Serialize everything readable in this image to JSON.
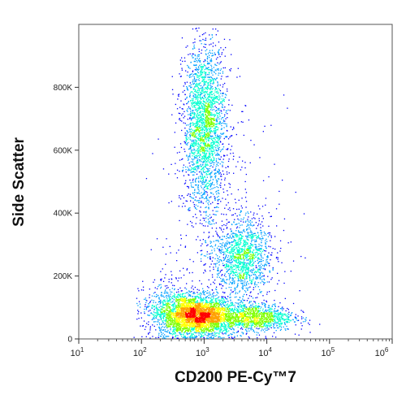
{
  "chart_data": {
    "type": "scatter",
    "subtype": "flow-cytometry-density-dot-plot",
    "xlabel": "CD200 PE-Cy™7",
    "ylabel": "Side Scatter",
    "x_scale": "log",
    "xlim": [
      10,
      1000000
    ],
    "ylim": [
      0,
      1000000
    ],
    "x_ticks": [
      {
        "base": "10",
        "exp": "1"
      },
      {
        "base": "10",
        "exp": "2"
      },
      {
        "base": "10",
        "exp": "3"
      },
      {
        "base": "10",
        "exp": "4"
      },
      {
        "base": "10",
        "exp": "5"
      },
      {
        "base": "10",
        "exp": "6"
      }
    ],
    "y_ticks": [
      {
        "value": 0,
        "label": "0"
      },
      {
        "value": 200000,
        "label": "200K"
      },
      {
        "value": 400000,
        "label": "400K"
      },
      {
        "value": 600000,
        "label": "600K"
      },
      {
        "value": 800000,
        "label": "800K"
      }
    ],
    "grid": false,
    "colormap": [
      "#0000ff",
      "#00a0ff",
      "#00ffd0",
      "#80ff00",
      "#ffff00",
      "#ffa000",
      "#ff0000"
    ],
    "populations": [
      {
        "x": 800,
        "y": 75000,
        "spread_x_decades": 0.28,
        "spread_y": 30000,
        "weight": 0.34
      },
      {
        "x": 1000,
        "y": 680000,
        "spread_x_decades": 0.17,
        "spread_y": 130000,
        "weight": 0.27
      },
      {
        "x": 4000,
        "y": 260000,
        "spread_x_decades": 0.22,
        "spread_y": 60000,
        "weight": 0.14
      },
      {
        "x": 6000,
        "y": 70000,
        "spread_x_decades": 0.32,
        "spread_y": 22000,
        "weight": 0.13
      },
      {
        "x": 300,
        "y": 90000,
        "spread_x_decades": 0.25,
        "spread_y": 45000,
        "weight": 0.07
      },
      {
        "x": 2000,
        "y": 300000,
        "spread_x_decades": 0.5,
        "spread_y": 200000,
        "weight": 0.05
      }
    ]
  }
}
